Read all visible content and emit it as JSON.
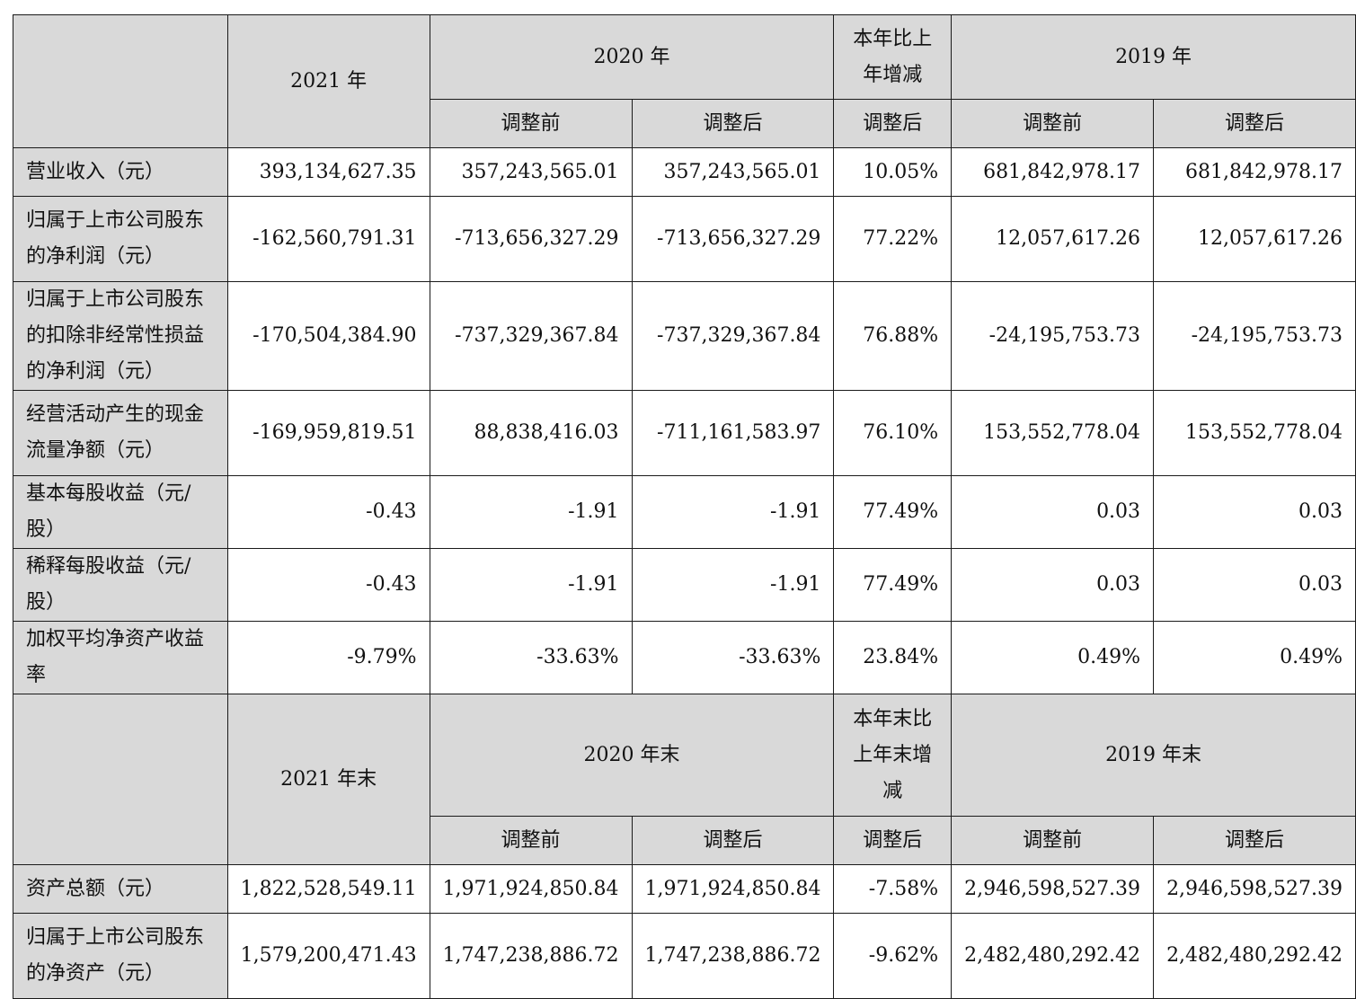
{
  "section1": {
    "header": {
      "col_2021": "2021 年",
      "col_2020": "2020 年",
      "col_change": "本年比上年增减",
      "col_2019": "2019 年"
    },
    "subheader": [
      "调整前",
      "调整后",
      "调整后",
      "调整前",
      "调整后"
    ],
    "rows": [
      {
        "label": "营业收入（元）",
        "values": [
          "393,134,627.35",
          "357,243,565.01",
          "357,243,565.01",
          "10.05%",
          "681,842,978.17",
          "681,842,978.17"
        ]
      },
      {
        "label": "归属于上市公司股东的净利润（元）",
        "values": [
          "-162,560,791.31",
          "-713,656,327.29",
          "-713,656,327.29",
          "77.22%",
          "12,057,617.26",
          "12,057,617.26"
        ]
      },
      {
        "label": "归属于上市公司股东的扣除非经常性损益的净利润（元）",
        "values": [
          "-170,504,384.90",
          "-737,329,367.84",
          "-737,329,367.84",
          "76.88%",
          "-24,195,753.73",
          "-24,195,753.73"
        ]
      },
      {
        "label": "经营活动产生的现金流量净额（元）",
        "values": [
          "-169,959,819.51",
          "88,838,416.03",
          "-711,161,583.97",
          "76.10%",
          "153,552,778.04",
          "153,552,778.04"
        ]
      },
      {
        "label": "基本每股收益（元/股）",
        "values": [
          "-0.43",
          "-1.91",
          "-1.91",
          "77.49%",
          "0.03",
          "0.03"
        ]
      },
      {
        "label": "稀释每股收益（元/股）",
        "values": [
          "-0.43",
          "-1.91",
          "-1.91",
          "77.49%",
          "0.03",
          "0.03"
        ]
      },
      {
        "label": "加权平均净资产收益率",
        "values": [
          "-9.79%",
          "-33.63%",
          "-33.63%",
          "23.84%",
          "0.49%",
          "0.49%"
        ]
      }
    ]
  },
  "section2": {
    "header": {
      "col_2021": "2021 年末",
      "col_2020": "2020 年末",
      "col_change": "本年末比上年末增减",
      "col_2019": "2019 年末"
    },
    "subheader": [
      "调整前",
      "调整后",
      "调整后",
      "调整前",
      "调整后"
    ],
    "rows": [
      {
        "label": "资产总额（元）",
        "values": [
          "1,822,528,549.11",
          "1,971,924,850.84",
          "1,971,924,850.84",
          "-7.58%",
          "2,946,598,527.39",
          "2,946,598,527.39"
        ]
      },
      {
        "label": "归属于上市公司股东的净资产（元）",
        "values": [
          "1,579,200,471.43",
          "1,747,238,886.72",
          "1,747,238,886.72",
          "-9.62%",
          "2,482,480,292.42",
          "2,482,480,292.42"
        ]
      }
    ]
  }
}
